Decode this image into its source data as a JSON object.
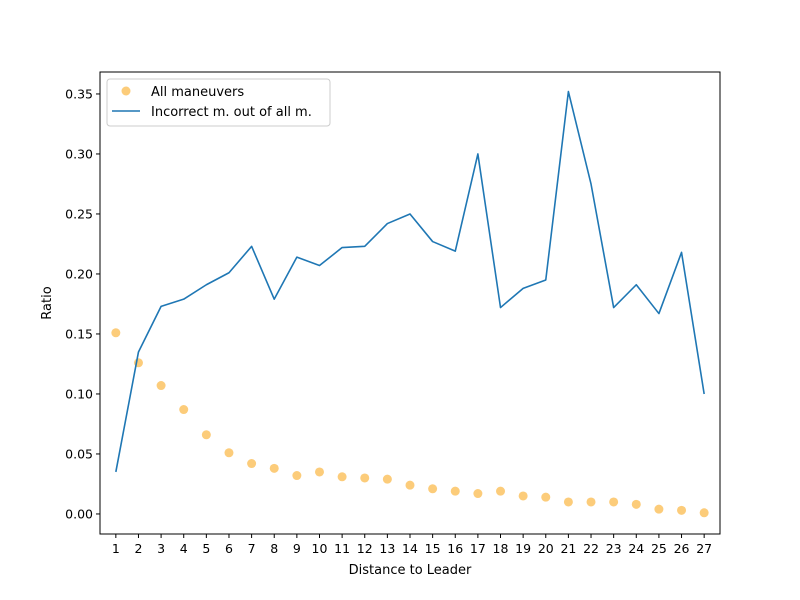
{
  "chart_data": {
    "type": "line",
    "xlabel": "Distance to Leader",
    "ylabel": "Ratio",
    "x": [
      1,
      2,
      3,
      4,
      5,
      6,
      7,
      8,
      9,
      10,
      11,
      12,
      13,
      14,
      15,
      16,
      17,
      18,
      19,
      20,
      21,
      22,
      23,
      24,
      25,
      26,
      27
    ],
    "xlim": [
      0.3,
      27.7
    ],
    "ylim": [
      -0.0167,
      0.3683
    ],
    "yticks": [
      0.0,
      0.05,
      0.1,
      0.15,
      0.2,
      0.25,
      0.3,
      0.35
    ],
    "ytick_labels": [
      "0.00",
      "0.05",
      "0.10",
      "0.15",
      "0.20",
      "0.25",
      "0.30",
      "0.35"
    ],
    "xtick_labels": [
      "1",
      "2",
      "3",
      "4",
      "5",
      "6",
      "7",
      "8",
      "9",
      "10",
      "11",
      "12",
      "13",
      "14",
      "15",
      "16",
      "17",
      "18",
      "19",
      "20",
      "21",
      "22",
      "23",
      "24",
      "25",
      "26",
      "27"
    ],
    "grid": false,
    "legend_position": "top-left",
    "series": [
      {
        "name": "All maneuvers",
        "kind": "scatter",
        "color": "#fbbb4e",
        "values": [
          0.151,
          0.126,
          0.107,
          0.087,
          0.066,
          0.051,
          0.042,
          0.038,
          0.032,
          0.035,
          0.031,
          0.03,
          0.029,
          0.024,
          0.021,
          0.019,
          0.017,
          0.019,
          0.015,
          0.014,
          0.01,
          0.01,
          0.01,
          0.008,
          0.004,
          0.003,
          0.001
        ]
      },
      {
        "name": "Incorrect m. out of all m.",
        "kind": "line",
        "color": "#1f77b4",
        "values": [
          0.035,
          0.135,
          0.173,
          0.179,
          0.191,
          0.201,
          0.223,
          0.179,
          0.214,
          0.207,
          0.222,
          0.223,
          0.242,
          0.25,
          0.227,
          0.219,
          0.3,
          0.172,
          0.188,
          0.195,
          0.352,
          0.275,
          0.172,
          0.191,
          0.167,
          0.218,
          0.1
        ]
      }
    ]
  }
}
